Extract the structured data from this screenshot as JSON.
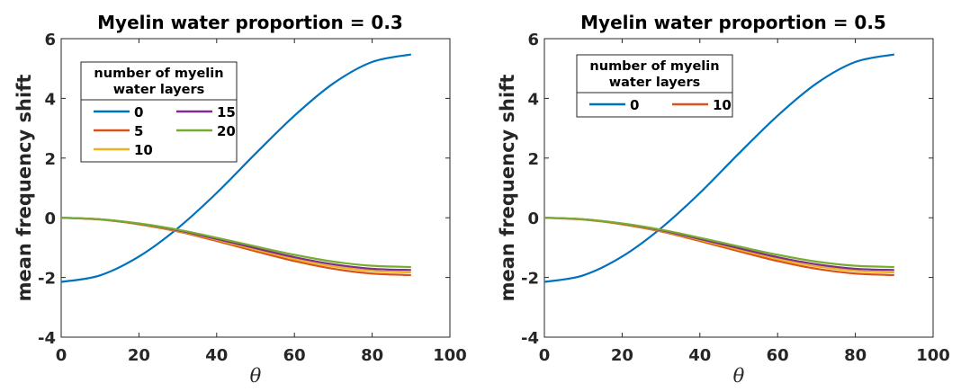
{
  "chart_data": [
    {
      "type": "line",
      "title": "Myelin water proportion = 0.3",
      "xlabel": "θ",
      "ylabel": "mean frequency shift",
      "xlim": [
        0,
        100
      ],
      "ylim": [
        -4,
        6
      ],
      "xticks": [
        "0",
        "20",
        "40",
        "60",
        "80",
        "100"
      ],
      "yticks": [
        "-4",
        "-2",
        "0",
        "2",
        "4",
        "6"
      ],
      "grid": false,
      "legend": {
        "title": [
          "number of myelin",
          "water layers"
        ],
        "placement": "upper-left",
        "columns": 2,
        "entries": [
          "0",
          "5",
          "10",
          "15",
          "20"
        ]
      },
      "series": [
        {
          "name": "0",
          "color": "#0072BD",
          "x": [
            0,
            10,
            20,
            30,
            40,
            50,
            60,
            70,
            80,
            90
          ],
          "y": [
            -2.15,
            -1.93,
            -1.3,
            -0.35,
            0.83,
            2.15,
            3.42,
            4.5,
            5.22,
            5.47
          ]
        },
        {
          "name": "5",
          "color": "#D95319",
          "x": [
            0,
            10,
            20,
            30,
            40,
            50,
            60,
            70,
            80,
            90
          ],
          "y": [
            0,
            -0.06,
            -0.22,
            -0.46,
            -0.78,
            -1.12,
            -1.45,
            -1.71,
            -1.87,
            -1.92
          ]
        },
        {
          "name": "10",
          "color": "#EDB120",
          "x": [
            0,
            10,
            20,
            30,
            40,
            50,
            60,
            70,
            80,
            90
          ],
          "y": [
            0,
            -0.055,
            -0.21,
            -0.44,
            -0.74,
            -1.07,
            -1.38,
            -1.63,
            -1.78,
            -1.83
          ]
        },
        {
          "name": "15",
          "color": "#7E2F8E",
          "x": [
            0,
            10,
            20,
            30,
            40,
            50,
            60,
            70,
            80,
            90
          ],
          "y": [
            0,
            -0.052,
            -0.2,
            -0.42,
            -0.71,
            -1.02,
            -1.32,
            -1.56,
            -1.71,
            -1.75
          ]
        },
        {
          "name": "20",
          "color": "#77AC30",
          "x": [
            0,
            10,
            20,
            30,
            40,
            50,
            60,
            70,
            80,
            90
          ],
          "y": [
            0,
            -0.05,
            -0.19,
            -0.4,
            -0.67,
            -0.96,
            -1.24,
            -1.47,
            -1.61,
            -1.65
          ]
        }
      ]
    },
    {
      "type": "line",
      "title": "Myelin water proportion = 0.5",
      "xlabel": "θ",
      "ylabel": "mean frequency shift",
      "xlim": [
        0,
        100
      ],
      "ylim": [
        -4,
        6
      ],
      "xticks": [
        "0",
        "20",
        "40",
        "60",
        "80",
        "100"
      ],
      "yticks": [
        "-4",
        "-2",
        "0",
        "2",
        "4",
        "6"
      ],
      "grid": false,
      "legend": {
        "title": [
          "number of myelin",
          "water layers"
        ],
        "placement": "upper-left",
        "columns": 2,
        "entries": [
          "0",
          "10"
        ]
      },
      "series": [
        {
          "name": "0",
          "color": "#0072BD",
          "x": [
            0,
            10,
            20,
            30,
            40,
            50,
            60,
            70,
            80,
            90
          ],
          "y": [
            -2.15,
            -1.93,
            -1.3,
            -0.35,
            0.83,
            2.15,
            3.42,
            4.5,
            5.22,
            5.47
          ]
        },
        {
          "name": "10",
          "color": "#D95319",
          "x": [
            0,
            10,
            20,
            30,
            40,
            50,
            60,
            70,
            80,
            90
          ],
          "y": [
            0,
            -0.06,
            -0.22,
            -0.46,
            -0.78,
            -1.12,
            -1.45,
            -1.71,
            -1.87,
            -1.92
          ]
        },
        {
          "name": "",
          "color": "#EDB120",
          "x": [
            0,
            10,
            20,
            30,
            40,
            50,
            60,
            70,
            80,
            90
          ],
          "y": [
            0,
            -0.055,
            -0.21,
            -0.44,
            -0.74,
            -1.07,
            -1.38,
            -1.63,
            -1.78,
            -1.83
          ]
        },
        {
          "name": "",
          "color": "#7E2F8E",
          "x": [
            0,
            10,
            20,
            30,
            40,
            50,
            60,
            70,
            80,
            90
          ],
          "y": [
            0,
            -0.052,
            -0.2,
            -0.42,
            -0.71,
            -1.02,
            -1.32,
            -1.56,
            -1.71,
            -1.75
          ]
        },
        {
          "name": "",
          "color": "#77AC30",
          "x": [
            0,
            10,
            20,
            30,
            40,
            50,
            60,
            70,
            80,
            90
          ],
          "y": [
            0,
            -0.05,
            -0.19,
            -0.4,
            -0.67,
            -0.96,
            -1.24,
            -1.47,
            -1.61,
            -1.65
          ]
        }
      ]
    }
  ]
}
